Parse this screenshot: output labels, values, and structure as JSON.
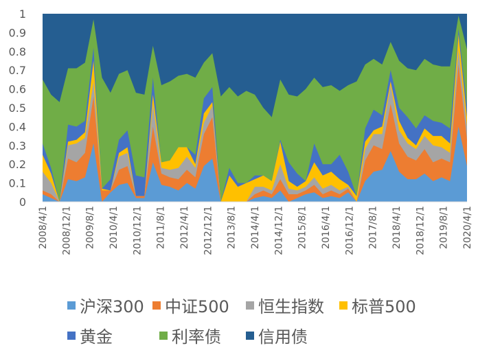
{
  "chart_data": {
    "type": "area",
    "stacked": true,
    "ylim": [
      0,
      1
    ],
    "yticks": [
      "0",
      "0.1",
      "0.2",
      "0.3",
      "0.4",
      "0.5",
      "0.6",
      "0.7",
      "0.8",
      "0.9",
      "1"
    ],
    "x_labels": [
      "2008/4/1",
      "2008/12/1",
      "2009/8/1",
      "2010/4/1",
      "2010/12/1",
      "2011/8/1",
      "2012/4/1",
      "2012/12/1",
      "2013/8/1",
      "2014/4/1",
      "2014/12/1",
      "2015/8/1",
      "2016/4/1",
      "2016/12/1",
      "2017/8/1",
      "2018/4/1",
      "2018/12/1",
      "2019/8/1",
      "2020/4/1"
    ],
    "grid": false,
    "legend_position": "bottom",
    "series": [
      {
        "name": "沪深300",
        "color": "#5B9BD5",
        "values": [
          0.04,
          0.02,
          0.0,
          0.12,
          0.11,
          0.13,
          0.31,
          0.0,
          0.05,
          0.09,
          0.1,
          0.02,
          0.02,
          0.21,
          0.09,
          0.08,
          0.06,
          0.1,
          0.07,
          0.19,
          0.23,
          0.0,
          0.0,
          0.0,
          0.0,
          0.02,
          0.03,
          0.02,
          0.06,
          0.0,
          0.02,
          0.04,
          0.05,
          0.02,
          0.03,
          0.02,
          0.05,
          0.0,
          0.11,
          0.16,
          0.17,
          0.27,
          0.16,
          0.12,
          0.12,
          0.15,
          0.11,
          0.13,
          0.11,
          0.4,
          0.19
        ]
      },
      {
        "name": "中证500",
        "color": "#ED7D31",
        "values": [
          0.02,
          0.02,
          0.0,
          0.11,
          0.1,
          0.13,
          0.25,
          0.06,
          0.01,
          0.08,
          0.09,
          0.01,
          0.01,
          0.19,
          0.06,
          0.05,
          0.06,
          0.07,
          0.06,
          0.17,
          0.22,
          0.0,
          0.0,
          0.0,
          0.0,
          0.02,
          0.03,
          0.02,
          0.06,
          0.04,
          0.02,
          0.02,
          0.04,
          0.02,
          0.03,
          0.02,
          0.02,
          0.0,
          0.11,
          0.14,
          0.11,
          0.25,
          0.15,
          0.12,
          0.1,
          0.13,
          0.1,
          0.1,
          0.1,
          0.33,
          0.14
        ]
      },
      {
        "name": "恒生指数",
        "color": "#A5A5A5",
        "values": [
          0.1,
          0.06,
          0.0,
          0.07,
          0.1,
          0.08,
          0.08,
          0.0,
          0.0,
          0.07,
          0.07,
          0.0,
          0.0,
          0.12,
          0.03,
          0.04,
          0.06,
          0.07,
          0.05,
          0.06,
          0.06,
          0.0,
          0.0,
          0.0,
          0.0,
          0.04,
          0.02,
          0.02,
          0.08,
          0.03,
          0.02,
          0.02,
          0.04,
          0.03,
          0.03,
          0.02,
          0.01,
          0.0,
          0.06,
          0.06,
          0.08,
          0.1,
          0.07,
          0.07,
          0.06,
          0.07,
          0.09,
          0.06,
          0.05,
          0.08,
          0.07
        ]
      },
      {
        "name": "标普500",
        "color": "#FFC000",
        "values": [
          0.09,
          0.05,
          0.0,
          0.02,
          0.02,
          0.03,
          0.11,
          0.01,
          0.0,
          0.02,
          0.03,
          0.0,
          0.0,
          0.05,
          0.03,
          0.05,
          0.11,
          0.05,
          0.02,
          0.05,
          0.02,
          0.0,
          0.14,
          0.08,
          0.1,
          0.04,
          0.06,
          0.05,
          0.12,
          0.04,
          0.02,
          0.03,
          0.08,
          0.07,
          0.07,
          0.06,
          0.01,
          0.03,
          0.04,
          0.02,
          0.04,
          0.02,
          0.05,
          0.03,
          0.02,
          0.04,
          0.05,
          0.06,
          0.05,
          0.08,
          0.05
        ]
      },
      {
        "name": "黄金",
        "color": "#4472C4",
        "values": [
          0.06,
          0.03,
          0.0,
          0.09,
          0.07,
          0.06,
          0.07,
          0.0,
          0.06,
          0.07,
          0.09,
          0.11,
          0.1,
          0.09,
          0.0,
          0.0,
          0.0,
          0.0,
          0.05,
          0.08,
          0.08,
          0.0,
          0.04,
          0.02,
          0.0,
          0.02,
          0.0,
          0.0,
          0.01,
          0.1,
          0.07,
          0.0,
          0.1,
          0.06,
          0.04,
          0.13,
          0.07,
          0.0,
          0.07,
          0.11,
          0.06,
          0.06,
          0.07,
          0.11,
          0.09,
          0.07,
          0.08,
          0.07,
          0.08,
          0.03,
          0.06
        ]
      },
      {
        "name": "利率债",
        "color": "#70AD47",
        "values": [
          0.34,
          0.39,
          0.53,
          0.3,
          0.31,
          0.31,
          0.15,
          0.59,
          0.46,
          0.35,
          0.32,
          0.44,
          0.44,
          0.17,
          0.41,
          0.42,
          0.38,
          0.39,
          0.41,
          0.19,
          0.18,
          0.56,
          0.43,
          0.46,
          0.49,
          0.43,
          0.36,
          0.34,
          0.32,
          0.36,
          0.41,
          0.49,
          0.35,
          0.41,
          0.42,
          0.34,
          0.46,
          0.61,
          0.34,
          0.27,
          0.27,
          0.15,
          0.25,
          0.26,
          0.31,
          0.3,
          0.3,
          0.3,
          0.33,
          0.07,
          0.3
        ]
      },
      {
        "name": "信用债",
        "color": "#255E91",
        "values": [
          0.35,
          0.43,
          0.47,
          0.29,
          0.29,
          0.26,
          0.03,
          0.34,
          0.42,
          0.32,
          0.3,
          0.42,
          0.43,
          0.17,
          0.38,
          0.36,
          0.33,
          0.32,
          0.34,
          0.26,
          0.21,
          0.44,
          0.39,
          0.44,
          0.41,
          0.43,
          0.5,
          0.55,
          0.35,
          0.43,
          0.44,
          0.4,
          0.34,
          0.39,
          0.38,
          0.41,
          0.38,
          0.36,
          0.27,
          0.24,
          0.27,
          0.15,
          0.25,
          0.29,
          0.3,
          0.24,
          0.27,
          0.28,
          0.28,
          0.01,
          0.19
        ]
      }
    ]
  },
  "legend": [
    {
      "label": "沪深300",
      "color": "#5B9BD5"
    },
    {
      "label": "中证500",
      "color": "#ED7D31"
    },
    {
      "label": "恒生指数",
      "color": "#A5A5A5"
    },
    {
      "label": "标普500",
      "color": "#FFC000"
    },
    {
      "label": "黄金",
      "color": "#4472C4"
    },
    {
      "label": "利率债",
      "color": "#70AD47"
    },
    {
      "label": "信用债",
      "color": "#255E91"
    }
  ]
}
